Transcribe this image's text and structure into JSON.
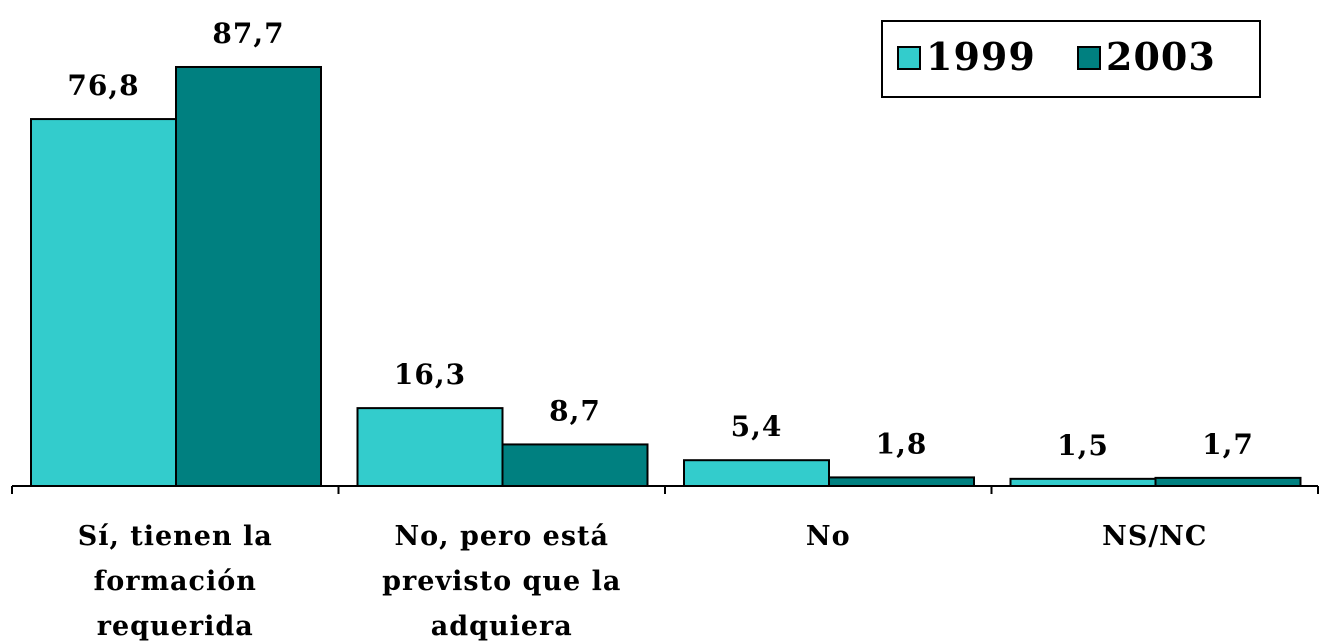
{
  "chart_data": {
    "type": "bar",
    "categories": [
      "Sí, tienen la formación requerida",
      "No, pero está previsto que la adquiera",
      "No",
      "NS/NC"
    ],
    "series": [
      {
        "name": "1999",
        "color": "#33cccc",
        "values": [
          76.8,
          16.3,
          5.4,
          1.5
        ],
        "value_labels": [
          "76,8",
          "16,3",
          "5,4",
          "1,5"
        ]
      },
      {
        "name": "2003",
        "color": "#008080",
        "values": [
          87.7,
          8.7,
          1.8,
          1.7
        ],
        "value_labels": [
          "87,7",
          "8,7",
          "1,8",
          "1,7"
        ]
      }
    ],
    "ylim": [
      0,
      90
    ],
    "legend": "top-right"
  }
}
